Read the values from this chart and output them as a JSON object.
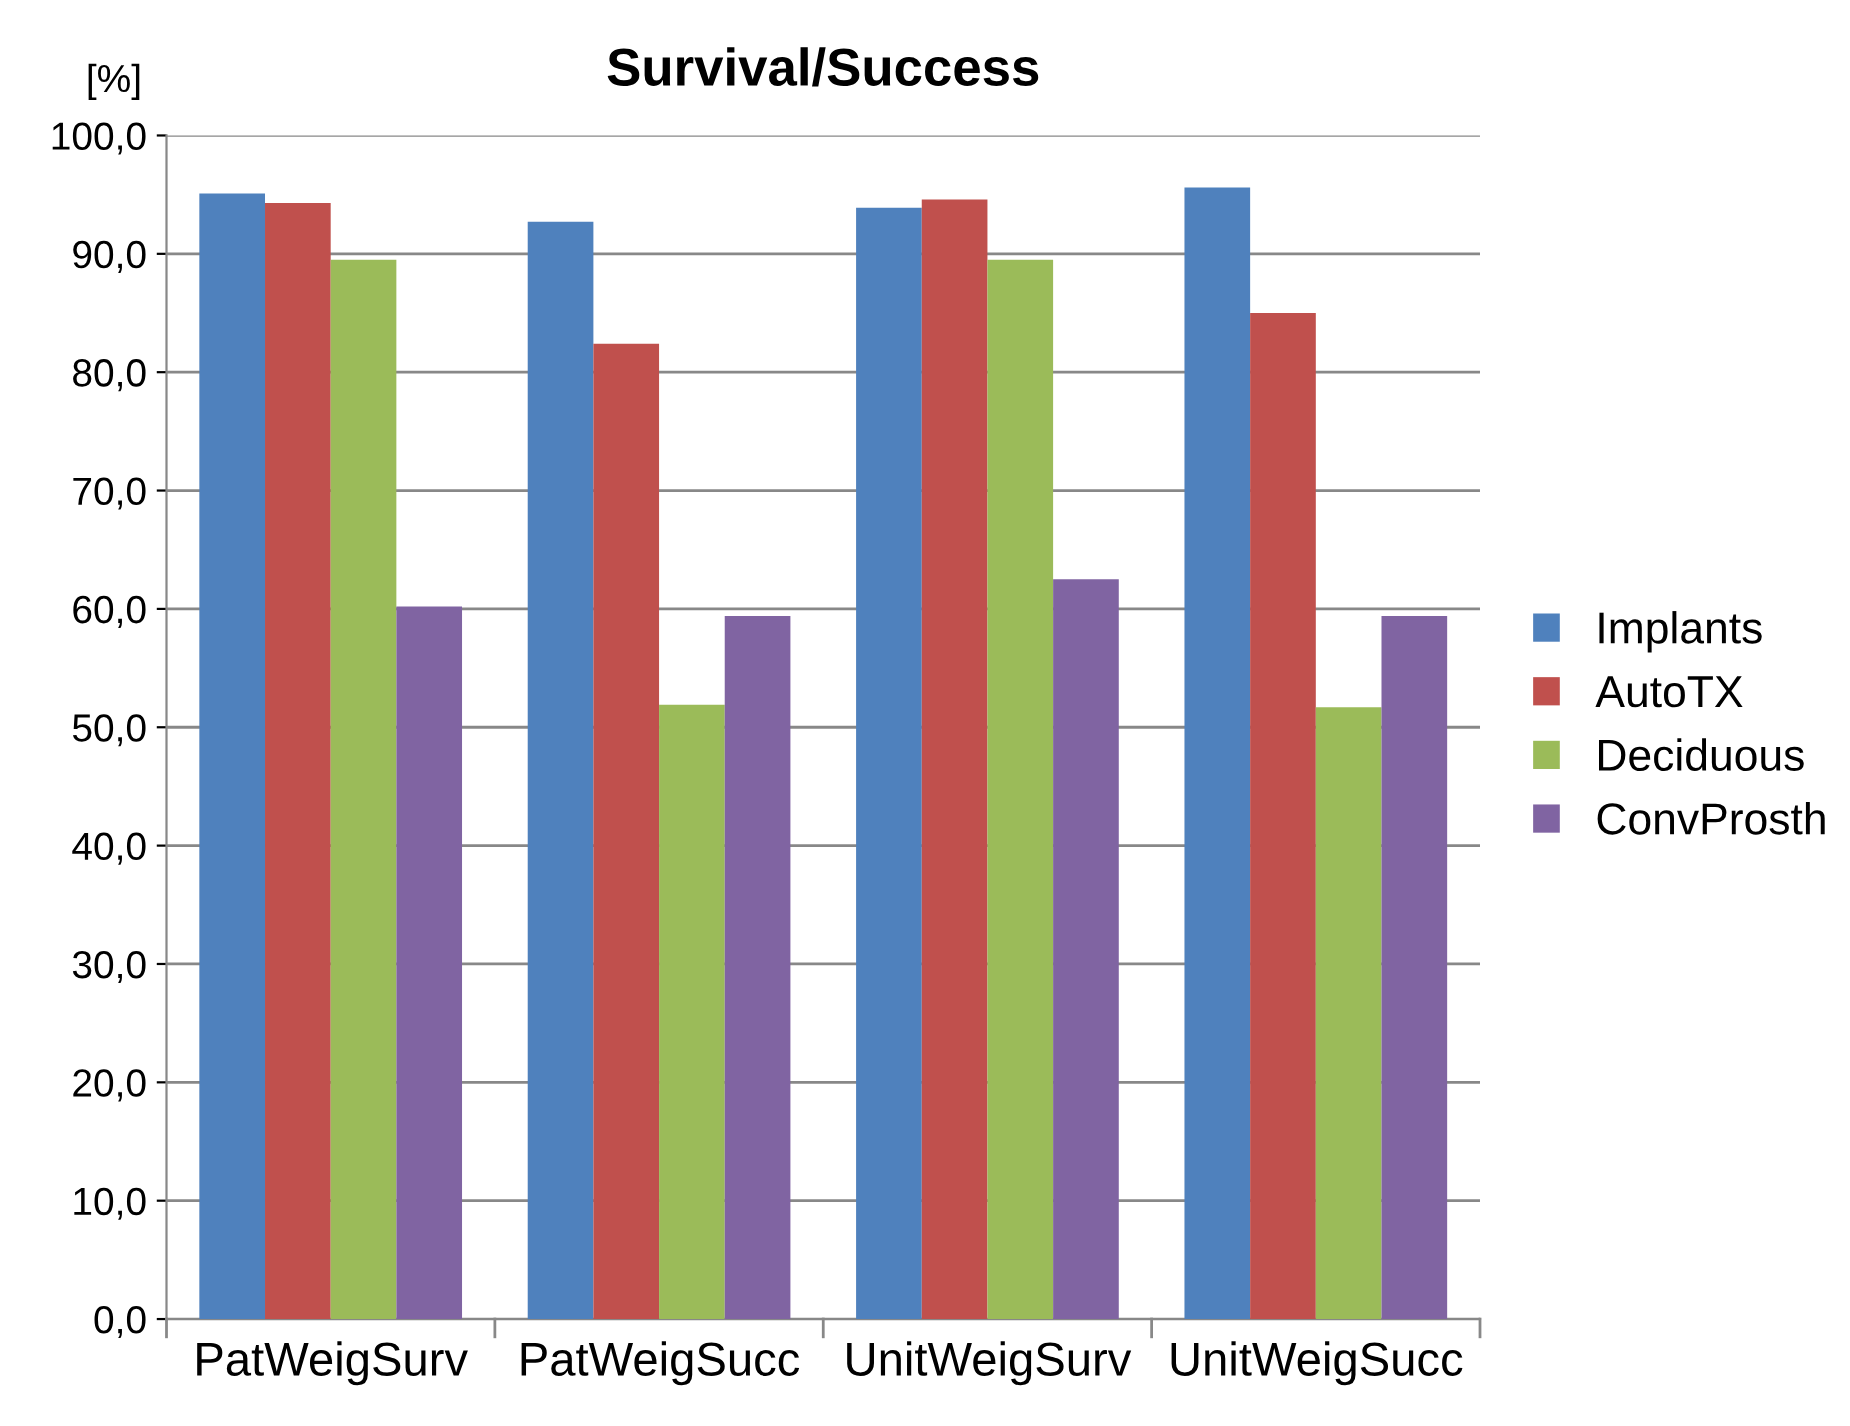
{
  "chart_data": {
    "type": "bar",
    "title": "Survival/Success",
    "ylabel": "[%]",
    "categories": [
      "PatWeigSurv",
      "PatWeigSucc",
      "UnitWeigSurv",
      "UnitWeigSucc"
    ],
    "series": [
      {
        "name": "Implants",
        "color": "#4f81bd",
        "values": [
          95.1,
          92.7,
          93.9,
          95.6
        ]
      },
      {
        "name": "AutoTX",
        "color": "#c0504d",
        "values": [
          94.3,
          82.4,
          94.6,
          85.0
        ]
      },
      {
        "name": "Deciduous",
        "color": "#9bbb59",
        "values": [
          89.5,
          51.9,
          89.5,
          51.7
        ]
      },
      {
        "name": "ConvProsth",
        "color": "#8064a2",
        "values": [
          60.2,
          59.4,
          62.5,
          59.4
        ]
      }
    ],
    "ylim": [
      0,
      100
    ],
    "yticks": [
      {
        "value": 0,
        "label": "0,0"
      },
      {
        "value": 10,
        "label": "10,0"
      },
      {
        "value": 20,
        "label": "20,0"
      },
      {
        "value": 30,
        "label": "30,0"
      },
      {
        "value": 40,
        "label": "40,0"
      },
      {
        "value": 50,
        "label": "50,0"
      },
      {
        "value": 60,
        "label": "60,0"
      },
      {
        "value": 70,
        "label": "70,0"
      },
      {
        "value": 80,
        "label": "80,0"
      },
      {
        "value": 90,
        "label": "90,0"
      },
      {
        "value": 100,
        "label": "100,0"
      }
    ],
    "grid": "y",
    "legend": "right"
  }
}
